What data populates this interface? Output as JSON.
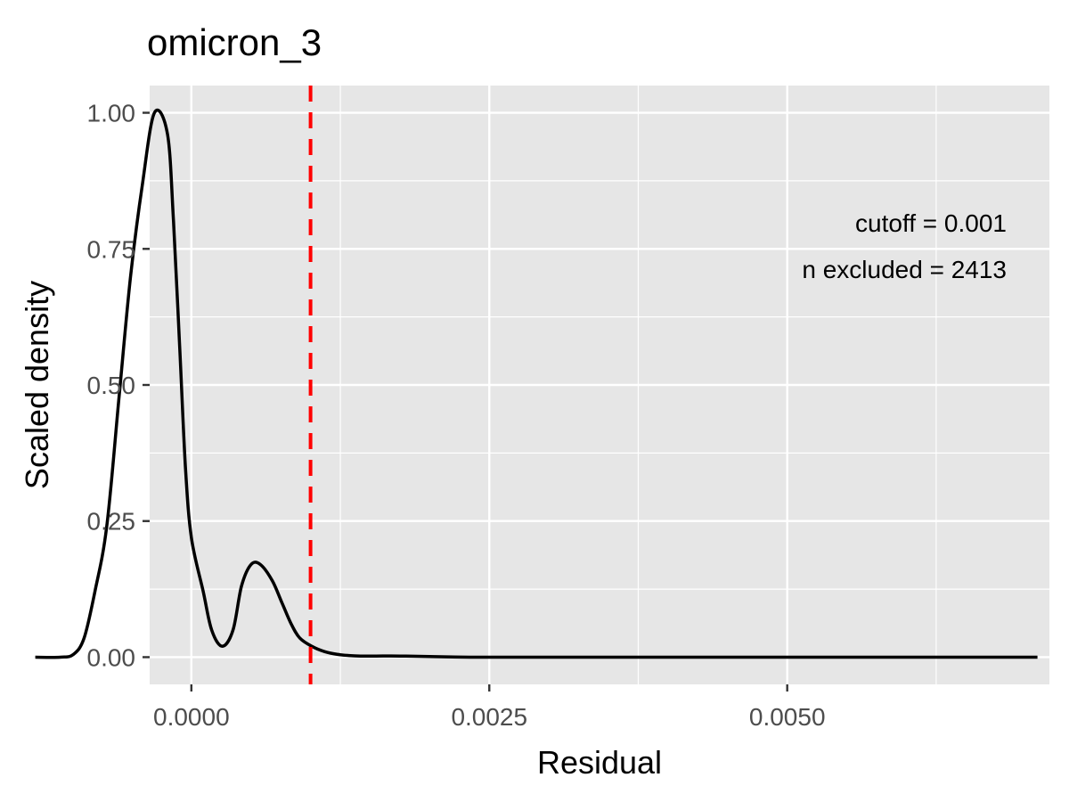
{
  "chart_data": {
    "type": "line",
    "title": "omicron_3",
    "xlabel": "Residual",
    "ylabel": "Scaled density",
    "xlim": [
      -0.00035,
      0.0072
    ],
    "ylim": [
      -0.05,
      1.05
    ],
    "x_ticks": [
      0.0,
      0.0025,
      0.005
    ],
    "x_tick_labels": [
      "0.0000",
      "0.0025",
      "0.0050"
    ],
    "y_ticks": [
      0.0,
      0.25,
      0.5,
      0.75,
      1.0
    ],
    "y_tick_labels": [
      "0.00",
      "0.25",
      "0.50",
      "0.75",
      "1.00"
    ],
    "grid": true,
    "cutoff": 0.001,
    "annotations": [
      "cutoff = 0.001",
      "n excluded = 2413"
    ],
    "colors": {
      "panel": "#e6e6e6",
      "grid": "#ffffff",
      "line": "#000000",
      "cutoff_line": "#ff0000"
    },
    "series": [
      {
        "x": [
          -0.00131,
          -0.0011,
          -0.00099,
          -0.0009,
          -0.00081,
          -0.00071,
          -0.00061,
          -0.00051,
          -0.00041,
          -0.00031,
          -0.0002,
          -0.00015,
          -0.0001,
          -5e-05,
          0.0,
          0.0001,
          0.00017,
          0.00026,
          0.00035,
          0.00042,
          0.0005,
          0.00058,
          0.00068,
          0.00076,
          0.00084,
          0.00091,
          0.00101,
          0.00112,
          0.00123,
          0.00132,
          0.00142,
          0.00155,
          0.00175,
          0.002,
          0.0025,
          0.004,
          0.0055,
          0.0071
        ],
        "y": [
          0.0,
          0.0,
          0.005,
          0.035,
          0.12,
          0.24,
          0.47,
          0.7,
          0.87,
          1.0,
          0.96,
          0.8,
          0.58,
          0.35,
          0.22,
          0.12,
          0.05,
          0.02,
          0.05,
          0.13,
          0.17,
          0.17,
          0.14,
          0.1,
          0.06,
          0.035,
          0.02,
          0.01,
          0.005,
          0.003,
          0.002,
          0.002,
          0.002,
          0.001,
          0.0,
          0.0,
          0.0,
          0.0
        ]
      }
    ]
  }
}
